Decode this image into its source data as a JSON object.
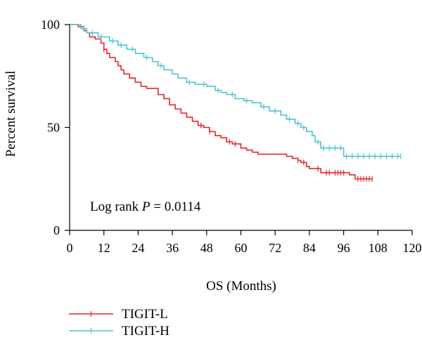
{
  "chart_data": {
    "type": "line",
    "xlabel": "OS (Months)",
    "ylabel": "Percent survival",
    "xlim": [
      0,
      120
    ],
    "ylim": [
      0,
      100
    ],
    "xticks": [
      0,
      12,
      24,
      36,
      48,
      60,
      72,
      84,
      96,
      108,
      120
    ],
    "yticks": [
      0,
      50,
      100
    ],
    "grid": false,
    "legend_position": "bottom-left",
    "annotation": {
      "prefix": "Log rank ",
      "pvar": "P",
      "suffix": " = 0.0114"
    },
    "series": [
      {
        "name": "TIGIT-L",
        "color": "#e8262d",
        "x": [
          0,
          3,
          5,
          6,
          7,
          9,
          11,
          12,
          13,
          14,
          16,
          17,
          18,
          19,
          21,
          23,
          25,
          27,
          31,
          33,
          35,
          37,
          39,
          41,
          43,
          45,
          47,
          49,
          51,
          53,
          55,
          57,
          60,
          62,
          64,
          66,
          74,
          76,
          78,
          80,
          81,
          83,
          84,
          88,
          98,
          100,
          106
        ],
        "y": [
          100,
          99,
          97,
          96,
          94,
          93,
          91,
          88,
          86,
          84,
          82,
          80,
          78,
          76,
          74,
          72,
          70,
          69,
          66,
          64,
          61,
          59,
          57,
          55,
          53,
          51,
          50,
          48,
          46,
          45,
          43,
          42,
          40,
          39,
          38,
          37,
          37,
          36,
          35,
          34,
          33,
          31,
          30,
          28,
          27,
          25,
          25
        ],
        "censored_x": [
          12,
          46,
          49,
          56,
          58,
          80,
          82,
          87,
          90,
          91,
          93,
          94,
          95,
          96,
          101,
          102,
          103,
          104,
          105,
          106
        ]
      },
      {
        "name": "TIGIT-H",
        "color": "#4fc4cf",
        "x": [
          0,
          4,
          6,
          10,
          14,
          17,
          20,
          23,
          26,
          29,
          31,
          33,
          36,
          38,
          41,
          44,
          48,
          51,
          53,
          55,
          58,
          61,
          64,
          67,
          70,
          74,
          76,
          79,
          81,
          83,
          85,
          86,
          88,
          96,
          116
        ],
        "y": [
          100,
          98,
          96,
          94,
          92,
          90,
          88,
          86,
          84,
          82,
          80,
          78,
          76,
          74,
          72,
          71,
          70,
          68,
          67,
          66,
          64,
          63,
          62,
          60,
          58,
          56,
          54,
          52,
          50,
          48,
          46,
          43,
          40,
          36,
          36
        ],
        "censored_x": [
          5,
          8,
          11,
          15,
          18,
          22,
          27,
          32,
          42,
          47,
          52,
          57,
          62,
          68,
          72,
          77,
          80,
          82,
          87,
          89,
          91,
          93,
          95,
          97,
          99,
          101,
          103,
          105,
          107,
          109,
          111,
          113,
          115,
          116
        ]
      }
    ]
  }
}
